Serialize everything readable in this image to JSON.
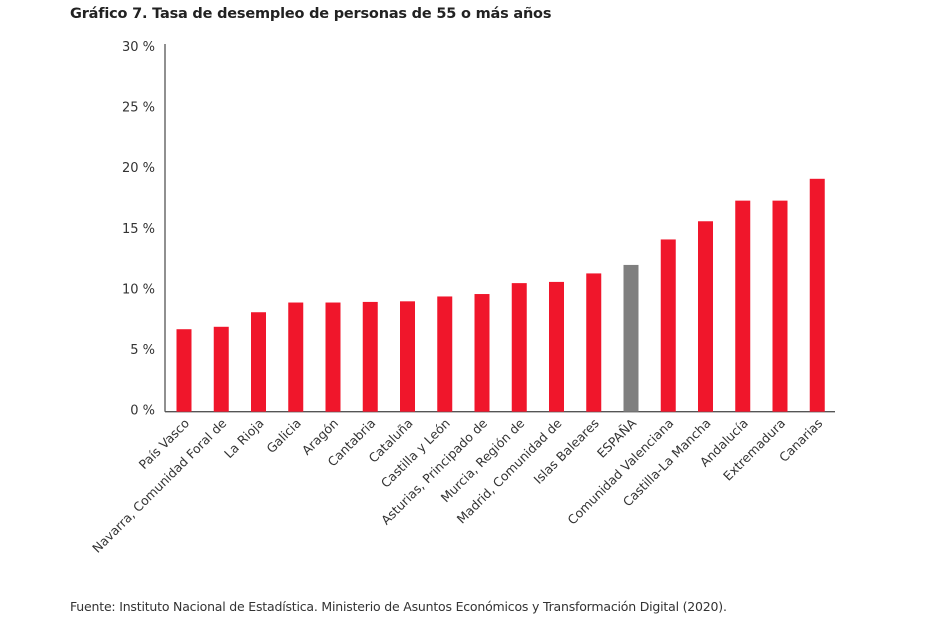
{
  "title": "Gráfico 7. Tasa de desempleo de personas de 55 o más años",
  "source": "Fuente: Instituto Nacional de Estadística. Ministerio de Asuntos Económicos y Transformación Digital (2020).",
  "chart_data": {
    "type": "bar",
    "title": "Gráfico 7. Tasa de desempleo de personas de 55 o más años",
    "xlabel": "",
    "ylabel": "",
    "ylim": [
      0,
      30
    ],
    "yticks": [
      "0 %",
      "5 %",
      "10 %",
      "15 %",
      "20 %",
      "25 %",
      "30 %"
    ],
    "grid": false,
    "categories": [
      "País Vasco",
      "Navarra, Comunidad Foral de",
      "La Rioja",
      "Galicia",
      "Aragón",
      "Cantabria",
      "Cataluña",
      "Castilla y León",
      "Asturias, Principado de",
      "Murcia, Región de",
      "Madrid, Comunidad de",
      "Islas Baleares",
      "ESPAÑA",
      "Comunidad Valenciana",
      "Castilla-La Mancha",
      "Andalucía",
      "Extremadura",
      "Canarias"
    ],
    "values": [
      6.8,
      7.0,
      8.2,
      9.0,
      9.0,
      9.05,
      9.1,
      9.5,
      9.7,
      10.6,
      10.7,
      11.4,
      12.1,
      14.2,
      15.7,
      17.4,
      17.4,
      19.2
    ],
    "colors": {
      "default": "#f0162b",
      "highlight": "#7f7f7f",
      "axis": "#555555"
    },
    "highlight_category": "ESPAÑA"
  }
}
